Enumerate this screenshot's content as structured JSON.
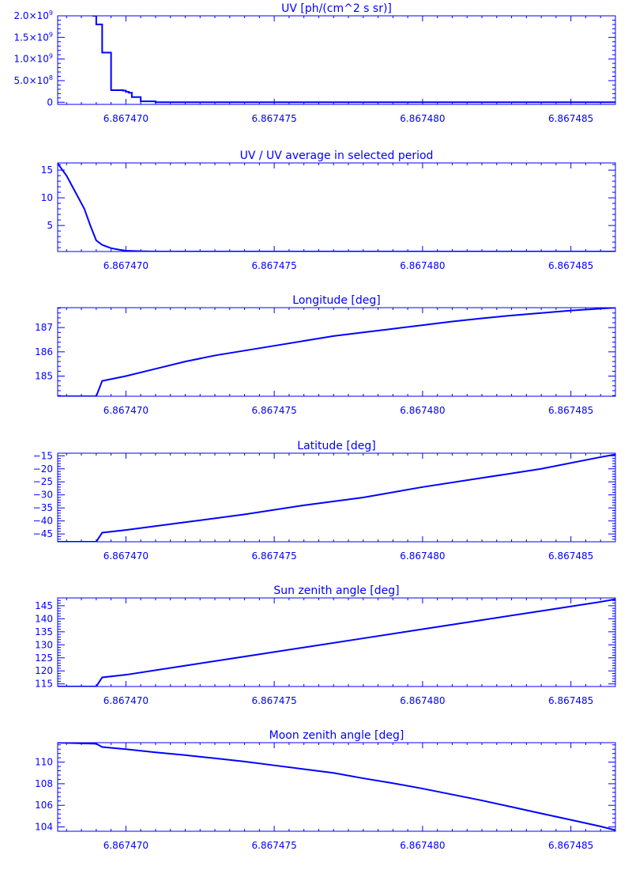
{
  "chart_data": [
    {
      "type": "line",
      "step": true,
      "title": "UV [ph/(cm^2 s sr)]",
      "xlim": [
        6.8674677,
        6.8674865
      ],
      "ylim": [
        -50000000.0,
        2000000000.0
      ],
      "xticks": [
        6.86747,
        6.867475,
        6.86748,
        6.867485
      ],
      "xtick_labels": [
        "6.867470",
        "6.867475",
        "6.867480",
        "6.867485"
      ],
      "yticks": [
        0,
        500000000.0,
        1000000000.0,
        1500000000.0,
        2000000000.0
      ],
      "ytick_labels": [
        {
          "mant": "0",
          "exp": ""
        },
        {
          "mant": "5.0×10",
          "exp": "8"
        },
        {
          "mant": "1.0×10",
          "exp": "9"
        },
        {
          "mant": "1.5×10",
          "exp": "9"
        },
        {
          "mant": "2.0×10",
          "exp": "9"
        }
      ],
      "x": [
        6.8674679,
        6.8674689,
        6.867469,
        6.8674692,
        6.8674695,
        6.8674699,
        6.86747,
        6.8674701,
        6.8674702,
        6.8674705,
        6.867471,
        6.867472,
        6.867474,
        6.867476,
        6.86748,
        6.867484,
        6.8674865
      ],
      "y": [
        2500000000.0,
        2000000000.0,
        1800000000.0,
        1150000000.0,
        280000000.0,
        270000000.0,
        240000000.0,
        220000000.0,
        120000000.0,
        20000000.0,
        0.0,
        0.0,
        0.0,
        0.0,
        0.0,
        0.0,
        0.0
      ]
    },
    {
      "type": "line",
      "title": "UV / UV average in selected period",
      "xlim": [
        6.8674677,
        6.8674865
      ],
      "ylim": [
        0.3,
        16.3
      ],
      "xticks": [
        6.86747,
        6.867475,
        6.86748,
        6.867485
      ],
      "xtick_labels": [
        "6.867470",
        "6.867475",
        "6.867480",
        "6.867485"
      ],
      "yticks": [
        5,
        10,
        15
      ],
      "ytick_labels": [
        {
          "mant": "5",
          "exp": ""
        },
        {
          "mant": "10",
          "exp": ""
        },
        {
          "mant": "15",
          "exp": ""
        }
      ],
      "x": [
        6.8674677,
        6.867468,
        6.8674683,
        6.8674686,
        6.8674688,
        6.867469,
        6.8674692,
        6.8674695,
        6.8674698,
        6.86747,
        6.8674705,
        6.867471,
        6.867473,
        6.867476,
        6.86748,
        6.867484,
        6.8674865
      ],
      "y": [
        16.2,
        14.0,
        11.0,
        8.0,
        5.0,
        2.3,
        1.5,
        0.9,
        0.6,
        0.45,
        0.35,
        0.3,
        0.3,
        0.3,
        0.3,
        0.3,
        0.3
      ]
    },
    {
      "type": "line",
      "title": "Longitude [deg]",
      "xlim": [
        6.8674677,
        6.8674865
      ],
      "ylim": [
        184.17,
        187.82
      ],
      "xticks": [
        6.86747,
        6.867475,
        6.86748,
        6.867485
      ],
      "xtick_labels": [
        "6.867470",
        "6.867475",
        "6.867480",
        "6.867485"
      ],
      "yticks": [
        185,
        186,
        187
      ],
      "ytick_labels": [
        {
          "mant": "185",
          "exp": ""
        },
        {
          "mant": "186",
          "exp": ""
        },
        {
          "mant": "187",
          "exp": ""
        }
      ],
      "x": [
        6.8674677,
        6.867469,
        6.8674692,
        6.86747,
        6.867471,
        6.867472,
        6.867473,
        6.867474,
        6.867475,
        6.867476,
        6.867477,
        6.867478,
        6.867479,
        6.86748,
        6.867481,
        6.867482,
        6.867483,
        6.867484,
        6.867485,
        6.867486,
        6.8674865
      ],
      "y": [
        184.17,
        184.17,
        184.8,
        185.0,
        185.3,
        185.6,
        185.85,
        186.05,
        186.25,
        186.45,
        186.65,
        186.8,
        186.95,
        187.1,
        187.25,
        187.38,
        187.5,
        187.6,
        187.7,
        187.78,
        187.82
      ]
    },
    {
      "type": "line",
      "title": "Latitude [deg]",
      "xlim": [
        6.8674677,
        6.8674865
      ],
      "ylim": [
        -48.0,
        -14.0
      ],
      "xticks": [
        6.86747,
        6.867475,
        6.86748,
        6.867485
      ],
      "xtick_labels": [
        "6.867470",
        "6.867475",
        "6.867480",
        "6.867485"
      ],
      "yticks": [
        -45,
        -40,
        -35,
        -30,
        -25,
        -20,
        -15
      ],
      "ytick_labels": [
        {
          "mant": "−45",
          "exp": ""
        },
        {
          "mant": "−40",
          "exp": ""
        },
        {
          "mant": "−35",
          "exp": ""
        },
        {
          "mant": "−30",
          "exp": ""
        },
        {
          "mant": "−25",
          "exp": ""
        },
        {
          "mant": "−20",
          "exp": ""
        },
        {
          "mant": "−15",
          "exp": ""
        }
      ],
      "x": [
        6.8674677,
        6.867469,
        6.8674692,
        6.86747,
        6.867472,
        6.867474,
        6.867476,
        6.867478,
        6.86748,
        6.867482,
        6.867484,
        6.867486,
        6.8674865
      ],
      "y": [
        -48.0,
        -48.0,
        -44.5,
        -43.5,
        -40.5,
        -37.5,
        -34.0,
        -31.0,
        -27.0,
        -23.5,
        -20.0,
        -15.5,
        -14.5
      ]
    },
    {
      "type": "line",
      "title": "Sun zenith angle [deg]",
      "xlim": [
        6.8674677,
        6.8674865
      ],
      "ylim": [
        114.0,
        148.0
      ],
      "xticks": [
        6.86747,
        6.867475,
        6.86748,
        6.867485
      ],
      "xtick_labels": [
        "6.867470",
        "6.867475",
        "6.867480",
        "6.867485"
      ],
      "yticks": [
        115,
        120,
        125,
        130,
        135,
        140,
        145
      ],
      "ytick_labels": [
        {
          "mant": "115",
          "exp": ""
        },
        {
          "mant": "120",
          "exp": ""
        },
        {
          "mant": "125",
          "exp": ""
        },
        {
          "mant": "130",
          "exp": ""
        },
        {
          "mant": "135",
          "exp": ""
        },
        {
          "mant": "140",
          "exp": ""
        },
        {
          "mant": "145",
          "exp": ""
        }
      ],
      "x": [
        6.8674677,
        6.867469,
        6.8674692,
        6.86747,
        6.867472,
        6.867474,
        6.867476,
        6.867478,
        6.86748,
        6.867482,
        6.867484,
        6.867486,
        6.8674865
      ],
      "y": [
        114.0,
        114.0,
        117.5,
        118.5,
        122.0,
        125.5,
        129.0,
        132.5,
        136.0,
        139.5,
        143.0,
        146.5,
        147.5
      ]
    },
    {
      "type": "line",
      "title": "Moon zenith angle [deg]",
      "xlim": [
        6.8674677,
        6.8674865
      ],
      "ylim": [
        103.6,
        111.8
      ],
      "xticks": [
        6.86747,
        6.867475,
        6.86748,
        6.867485
      ],
      "xtick_labels": [
        "6.867470",
        "6.867475",
        "6.867480",
        "6.867485"
      ],
      "yticks": [
        104,
        106,
        108,
        110
      ],
      "ytick_labels": [
        {
          "mant": "104",
          "exp": ""
        },
        {
          "mant": "106",
          "exp": ""
        },
        {
          "mant": "108",
          "exp": ""
        },
        {
          "mant": "110",
          "exp": ""
        }
      ],
      "x": [
        6.8674677,
        6.867469,
        6.8674692,
        6.86747,
        6.867471,
        6.867472,
        6.867473,
        6.867474,
        6.867475,
        6.867476,
        6.867477,
        6.867478,
        6.867479,
        6.86748,
        6.867481,
        6.867482,
        6.867483,
        6.867484,
        6.867485,
        6.867486,
        6.8674865
      ],
      "y": [
        111.8,
        111.7,
        111.4,
        111.2,
        110.9,
        110.65,
        110.35,
        110.05,
        109.7,
        109.35,
        109.0,
        108.5,
        108.05,
        107.55,
        107.0,
        106.45,
        105.85,
        105.25,
        104.65,
        104.05,
        103.7
      ]
    }
  ]
}
